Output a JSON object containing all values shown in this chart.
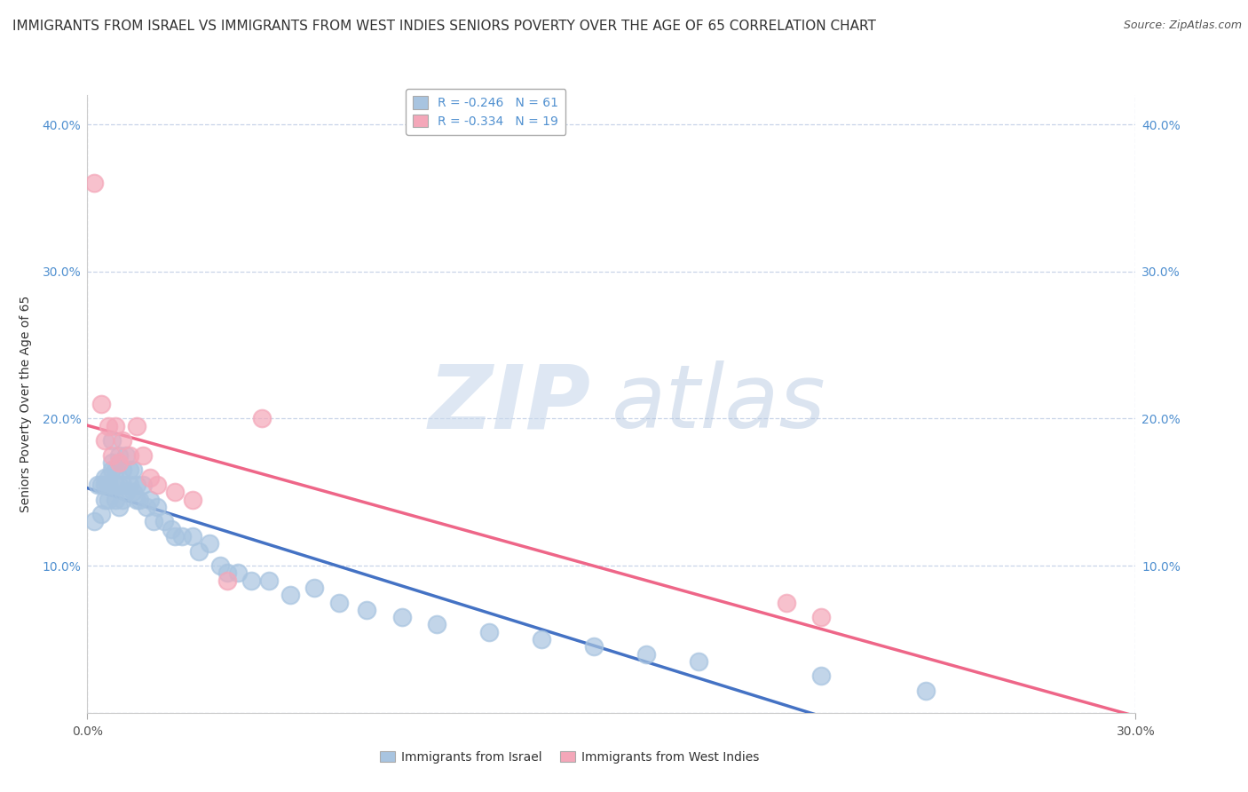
{
  "title": "IMMIGRANTS FROM ISRAEL VS IMMIGRANTS FROM WEST INDIES SENIORS POVERTY OVER THE AGE OF 65 CORRELATION CHART",
  "source": "Source: ZipAtlas.com",
  "ylabel": "Seniors Poverty Over the Age of 65",
  "xlim": [
    0.0,
    0.3
  ],
  "ylim": [
    0.0,
    0.42
  ],
  "yticks": [
    0.0,
    0.1,
    0.2,
    0.3,
    0.4
  ],
  "ytick_labels": [
    "",
    "10.0%",
    "20.0%",
    "30.0%",
    "40.0%"
  ],
  "xtick_left_label": "0.0%",
  "xtick_right_label": "30.0%",
  "israel_R": -0.246,
  "israel_N": 61,
  "westindies_R": -0.334,
  "westindies_N": 19,
  "israel_color": "#a8c4e0",
  "westindies_color": "#f4a7b9",
  "israel_line_color": "#4472c4",
  "westindies_line_color": "#ee6688",
  "legend_label_israel": "Immigrants from Israel",
  "legend_label_westindies": "Immigrants from West Indies",
  "watermark_zip": "ZIP",
  "watermark_atlas": "atlas",
  "background_color": "#ffffff",
  "grid_color": "#c8d4e8",
  "title_fontsize": 11,
  "axis_fontsize": 10,
  "tick_fontsize": 10,
  "source_fontsize": 9,
  "legend_fontsize": 10,
  "israel_x": [
    0.002,
    0.003,
    0.004,
    0.004,
    0.005,
    0.005,
    0.005,
    0.006,
    0.006,
    0.006,
    0.007,
    0.007,
    0.007,
    0.008,
    0.008,
    0.008,
    0.009,
    0.009,
    0.009,
    0.01,
    0.01,
    0.01,
    0.011,
    0.011,
    0.012,
    0.012,
    0.013,
    0.013,
    0.014,
    0.014,
    0.015,
    0.016,
    0.017,
    0.018,
    0.019,
    0.02,
    0.022,
    0.024,
    0.025,
    0.027,
    0.03,
    0.032,
    0.035,
    0.038,
    0.04,
    0.043,
    0.047,
    0.052,
    0.058,
    0.065,
    0.072,
    0.08,
    0.09,
    0.1,
    0.115,
    0.13,
    0.145,
    0.16,
    0.175,
    0.21,
    0.24
  ],
  "israel_y": [
    0.13,
    0.155,
    0.155,
    0.135,
    0.155,
    0.145,
    0.16,
    0.155,
    0.145,
    0.16,
    0.165,
    0.17,
    0.185,
    0.145,
    0.155,
    0.165,
    0.14,
    0.155,
    0.175,
    0.155,
    0.145,
    0.165,
    0.15,
    0.175,
    0.155,
    0.165,
    0.15,
    0.165,
    0.145,
    0.155,
    0.145,
    0.155,
    0.14,
    0.145,
    0.13,
    0.14,
    0.13,
    0.125,
    0.12,
    0.12,
    0.12,
    0.11,
    0.115,
    0.1,
    0.095,
    0.095,
    0.09,
    0.09,
    0.08,
    0.085,
    0.075,
    0.07,
    0.065,
    0.06,
    0.055,
    0.05,
    0.045,
    0.04,
    0.035,
    0.025,
    0.015
  ],
  "westindies_x": [
    0.002,
    0.004,
    0.005,
    0.006,
    0.007,
    0.008,
    0.009,
    0.01,
    0.012,
    0.014,
    0.016,
    0.018,
    0.02,
    0.025,
    0.03,
    0.04,
    0.05,
    0.2,
    0.21
  ],
  "westindies_y": [
    0.36,
    0.21,
    0.185,
    0.195,
    0.175,
    0.195,
    0.17,
    0.185,
    0.175,
    0.195,
    0.175,
    0.16,
    0.155,
    0.15,
    0.145,
    0.09,
    0.2,
    0.075,
    0.065
  ]
}
